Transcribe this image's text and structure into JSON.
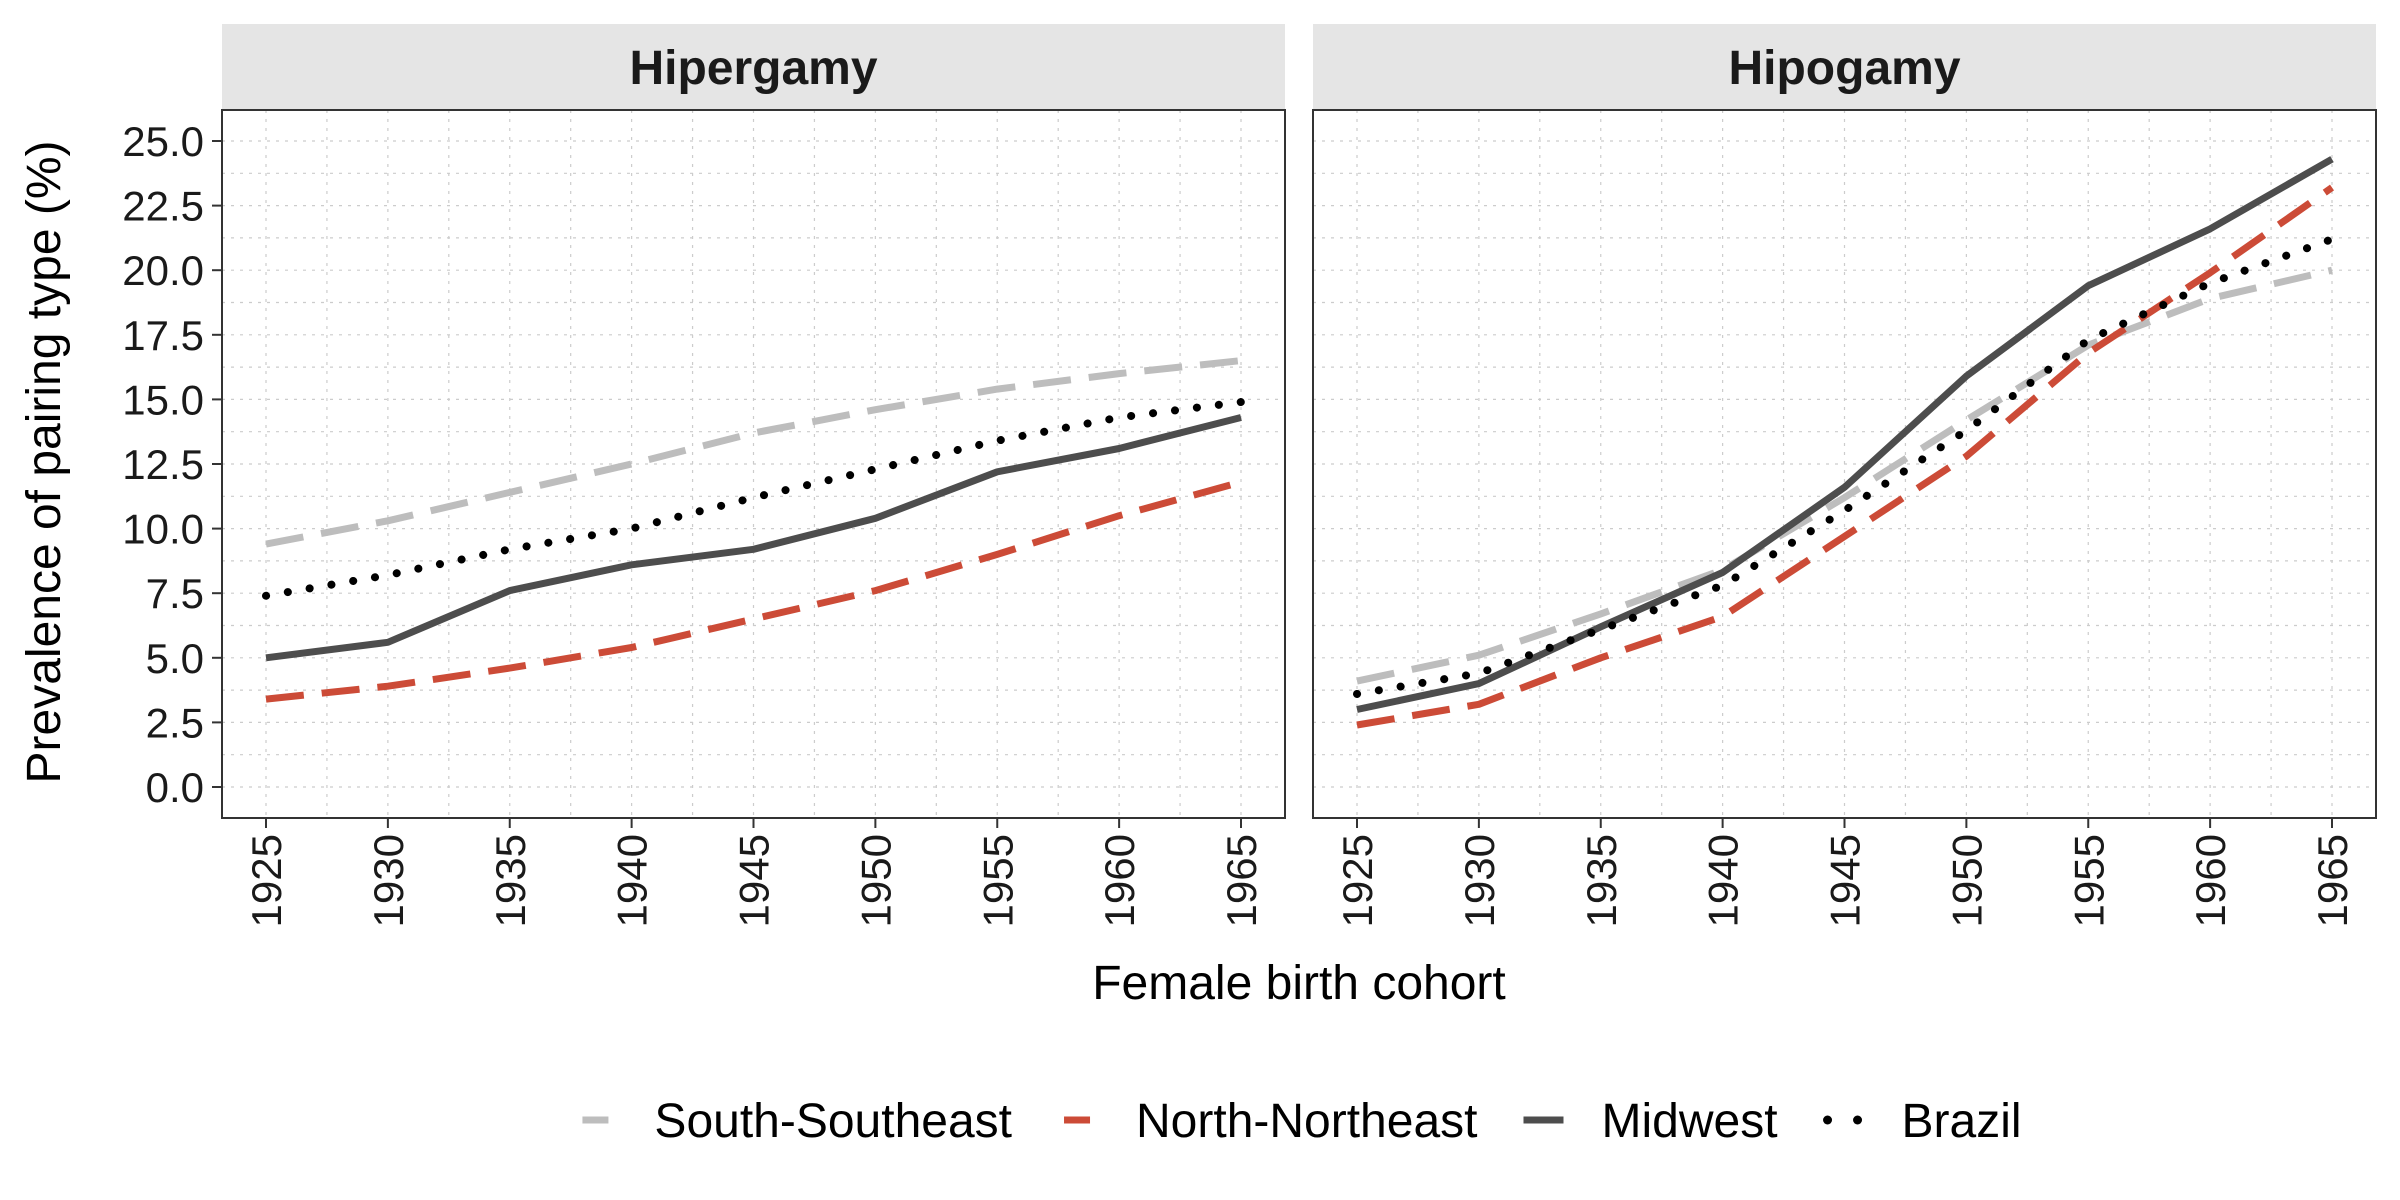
{
  "chart_data": {
    "type": "line",
    "xlabel": "Female birth cohort",
    "ylabel": "Prevalence of pairing type (%)",
    "x": [
      1925,
      1930,
      1935,
      1940,
      1945,
      1950,
      1955,
      1960,
      1965
    ],
    "x_tick_labels": [
      "1925",
      "1930",
      "1935",
      "1940",
      "1945",
      "1950",
      "1955",
      "1960",
      "1965"
    ],
    "ylim": [
      -1.2,
      26.2
    ],
    "y_ticks": [
      0,
      2.5,
      5,
      7.5,
      10,
      12.5,
      15,
      17.5,
      20,
      22.5,
      25
    ],
    "y_tick_labels": [
      "0.0",
      "2.5",
      "5.0",
      "7.5",
      "10.0",
      "12.5",
      "15.0",
      "17.5",
      "20.0",
      "22.5",
      "25.0"
    ],
    "grid": true,
    "legend_position": "bottom",
    "legend": [
      {
        "key": "south",
        "label": "South-Southeast",
        "color": "#bdbdbd",
        "dash": "long-dash"
      },
      {
        "key": "north",
        "label": "North-Northeast",
        "color": "#cc4b37",
        "dash": "long-dash"
      },
      {
        "key": "midwest",
        "label": "Midwest",
        "color": "#4d4d4d",
        "dash": "solid"
      },
      {
        "key": "brazil",
        "label": "Brazil",
        "color": "#000000",
        "dash": "dotted"
      }
    ],
    "panels": [
      {
        "title": "Hipergamy",
        "series": [
          {
            "key": "south",
            "values": [
              9.4,
              10.3,
              11.4,
              12.5,
              13.7,
              14.6,
              15.4,
              16.0,
              16.5
            ]
          },
          {
            "key": "north",
            "values": [
              3.4,
              3.9,
              4.6,
              5.4,
              6.5,
              7.6,
              9.0,
              10.5,
              11.8
            ]
          },
          {
            "key": "midwest",
            "values": [
              5.0,
              5.6,
              7.6,
              8.6,
              9.2,
              10.4,
              12.2,
              13.1,
              14.3
            ]
          },
          {
            "key": "brazil",
            "values": [
              7.4,
              8.2,
              9.2,
              10.0,
              11.2,
              12.3,
              13.4,
              14.3,
              14.9
            ]
          }
        ]
      },
      {
        "title": "Hipogamy",
        "series": [
          {
            "key": "south",
            "values": [
              4.1,
              5.1,
              6.7,
              8.4,
              11.2,
              14.2,
              17.1,
              18.9,
              20.0
            ]
          },
          {
            "key": "north",
            "values": [
              2.4,
              3.2,
              5.0,
              6.6,
              9.7,
              12.8,
              16.8,
              19.9,
              23.2
            ]
          },
          {
            "key": "midwest",
            "values": [
              3.0,
              4.0,
              6.2,
              8.3,
              11.6,
              15.9,
              19.4,
              21.6,
              24.3
            ]
          },
          {
            "key": "brazil",
            "values": [
              3.6,
              4.4,
              6.1,
              7.8,
              10.7,
              13.8,
              17.3,
              19.5,
              21.2
            ]
          }
        ]
      }
    ]
  }
}
